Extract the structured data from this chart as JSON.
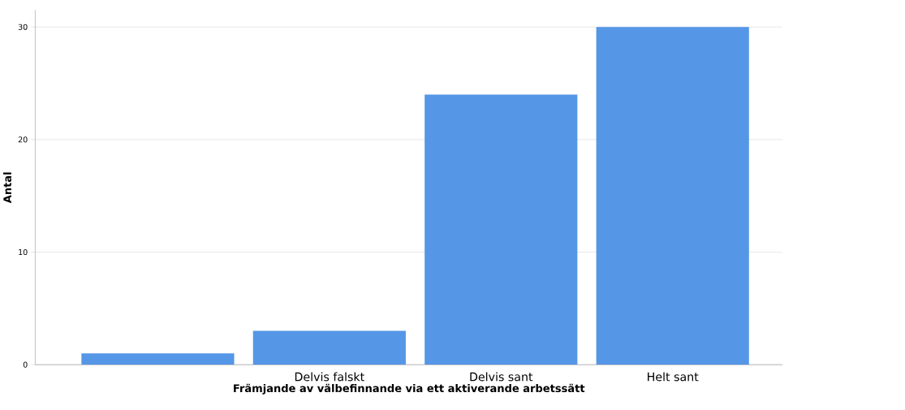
{
  "chart_data": {
    "type": "bar",
    "xlabel": "Främjande av välbefinnande via ett aktiverande arbetssätt",
    "ylabel": "Antal",
    "categories": [
      null,
      "Delvis falskt",
      "Delvis sant",
      "Helt sant"
    ],
    "values": [
      1,
      3,
      24,
      30
    ],
    "color": "#5596e6",
    "ylim": [
      0,
      31.5
    ],
    "yticks": [
      0,
      10,
      20,
      30
    ],
    "grid": "y"
  }
}
